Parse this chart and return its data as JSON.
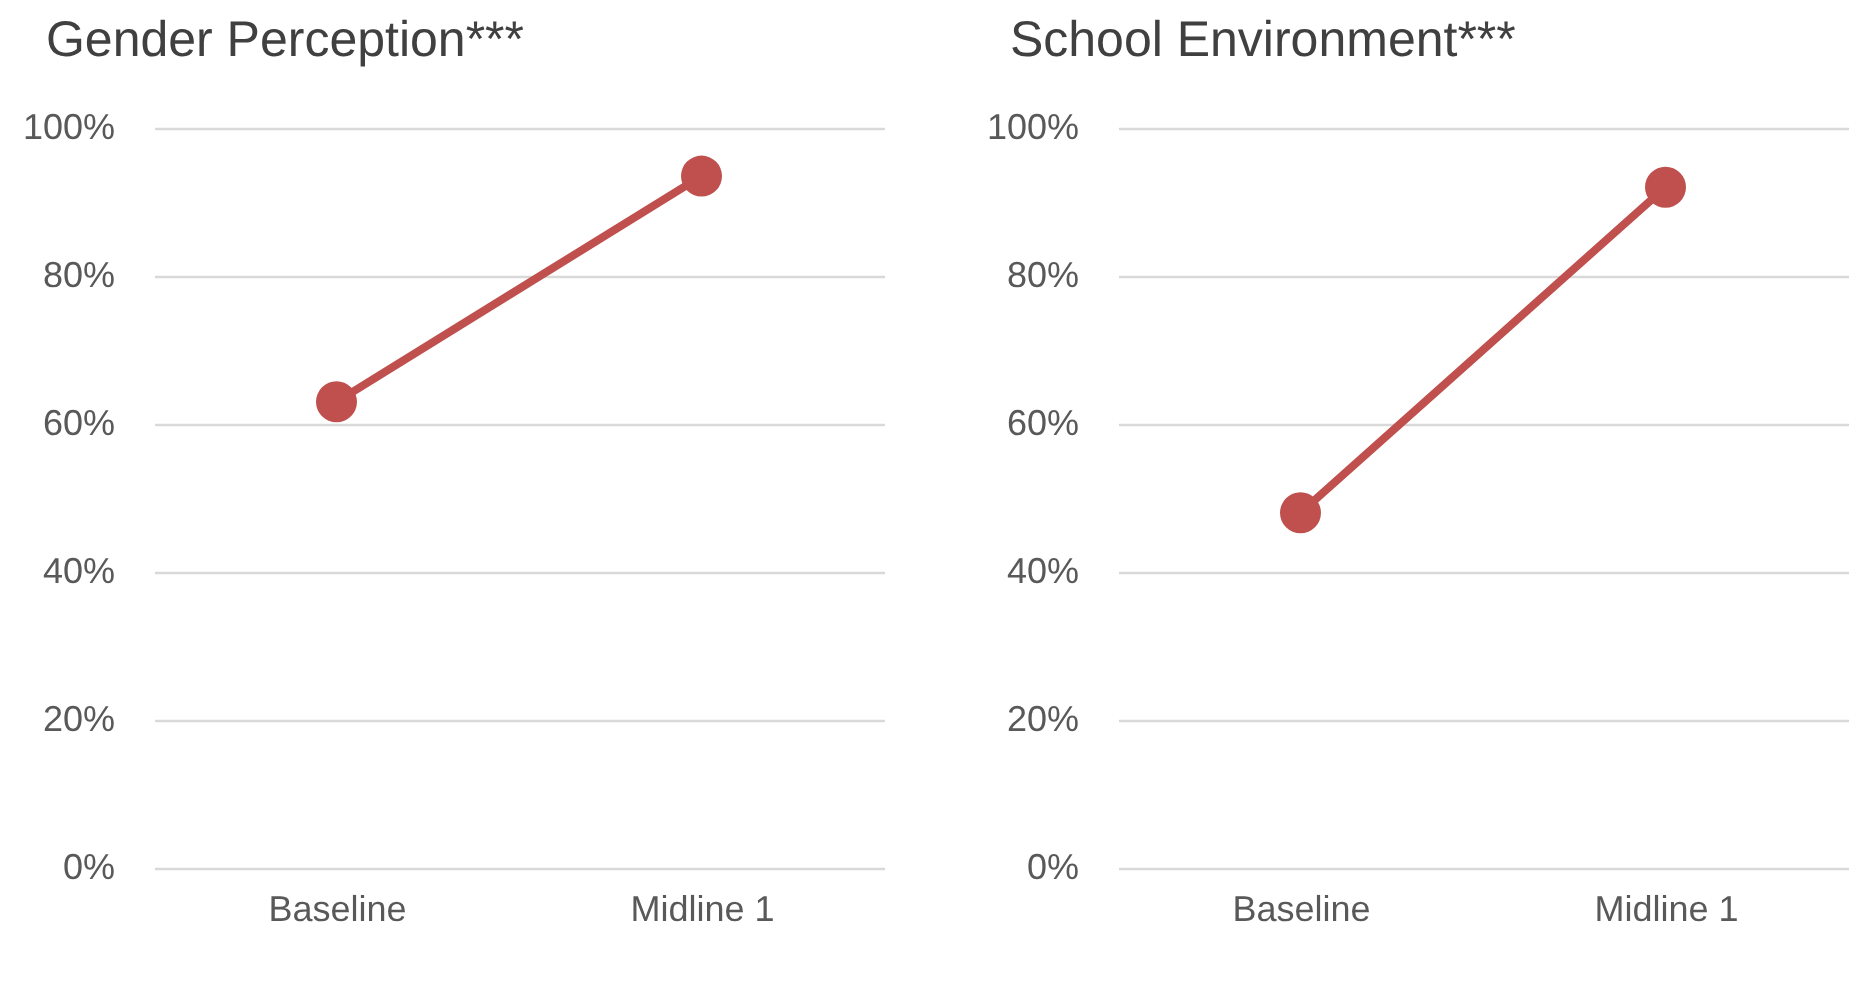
{
  "chart_data": [
    {
      "type": "line",
      "title": "Gender Perception***",
      "categories": [
        "Baseline",
        "Midline 1"
      ],
      "series": [
        {
          "color": "#c0504d",
          "values": [
            63,
            93.5
          ]
        }
      ],
      "ylim": [
        0,
        100
      ],
      "yticks": [
        {
          "value": 0,
          "label": "0%"
        },
        {
          "value": 20,
          "label": "20%"
        },
        {
          "value": 40,
          "label": "40%"
        },
        {
          "value": 60,
          "label": "60%"
        },
        {
          "value": 80,
          "label": "80%"
        },
        {
          "value": 100,
          "label": "100%"
        }
      ],
      "grid": "y",
      "marker": "circle",
      "line_style": "solid"
    },
    {
      "type": "line",
      "title": "School Environment***",
      "categories": [
        "Baseline",
        "Midline 1"
      ],
      "series": [
        {
          "color": "#c0504d",
          "values": [
            48,
            92
          ]
        }
      ],
      "ylim": [
        0,
        100
      ],
      "yticks": [
        {
          "value": 0,
          "label": "0%"
        },
        {
          "value": 20,
          "label": "20%"
        },
        {
          "value": 40,
          "label": "40%"
        },
        {
          "value": 60,
          "label": "60%"
        },
        {
          "value": 80,
          "label": "80%"
        },
        {
          "value": 100,
          "label": "100%"
        }
      ],
      "grid": "y",
      "marker": "circle",
      "line_style": "solid"
    }
  ]
}
